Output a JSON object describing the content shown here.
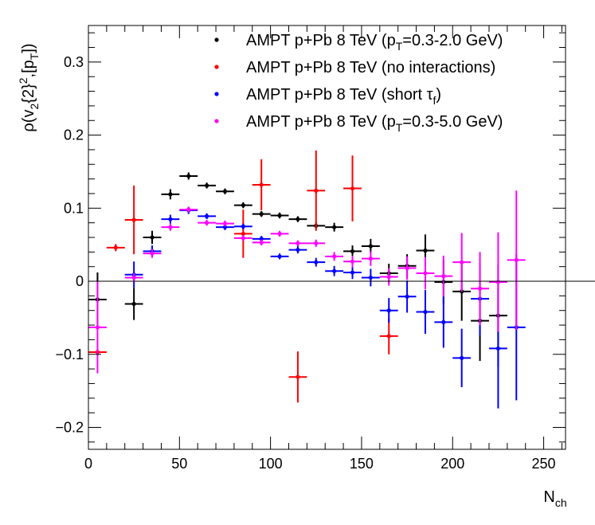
{
  "chart_data": {
    "type": "scatter",
    "title": "",
    "xlabel": "N_ch",
    "ylabel": "ρ(v_2{2}^2,[p_T])",
    "xlim": [
      0,
      262
    ],
    "ylim": [
      -0.23,
      0.35
    ],
    "x_ticks": [
      0,
      50,
      100,
      150,
      200,
      250
    ],
    "x_tick_labels": [
      "0",
      "50",
      "100",
      "150",
      "200",
      "250"
    ],
    "y_ticks": [
      -0.2,
      -0.1,
      0,
      0.1,
      0.2,
      0.3
    ],
    "y_tick_labels": [
      "−0.2",
      "−0.1",
      "0",
      "0.1",
      "0.2",
      "0.3"
    ],
    "zero_line": true,
    "grid": false,
    "legend_position": "top-right",
    "series": [
      {
        "name": "AMPT p+Pb 8 TeV (pT=0.3-2.0 GeV)",
        "legend_main": "AMPT p+Pb 8 TeV (p",
        "legend_sub": "T",
        "legend_tail": "=0.3-2.0 GeV)",
        "color": "#000000",
        "points": [
          {
            "x": 5,
            "y": -0.025,
            "err": 0.037
          },
          {
            "x": 25,
            "y": -0.031,
            "err": 0.022
          },
          {
            "x": 35,
            "y": 0.06,
            "err": 0.009
          },
          {
            "x": 45,
            "y": 0.119,
            "err": 0.007
          },
          {
            "x": 55,
            "y": 0.144,
            "err": 0.005
          },
          {
            "x": 65,
            "y": 0.131,
            "err": 0.004
          },
          {
            "x": 75,
            "y": 0.123,
            "err": 0.004
          },
          {
            "x": 85,
            "y": 0.104,
            "err": 0.004
          },
          {
            "x": 95,
            "y": 0.092,
            "err": 0.004
          },
          {
            "x": 105,
            "y": 0.09,
            "err": 0.004
          },
          {
            "x": 115,
            "y": 0.085,
            "err": 0.004
          },
          {
            "x": 125,
            "y": 0.076,
            "err": 0.005
          },
          {
            "x": 135,
            "y": 0.074,
            "err": 0.006
          },
          {
            "x": 145,
            "y": 0.041,
            "err": 0.008
          },
          {
            "x": 155,
            "y": 0.048,
            "err": 0.01
          },
          {
            "x": 165,
            "y": 0.011,
            "err": 0.013
          },
          {
            "x": 175,
            "y": 0.021,
            "err": 0.016
          },
          {
            "x": 185,
            "y": 0.042,
            "err": 0.022
          },
          {
            "x": 195,
            "y": -0.001,
            "err": 0.03
          },
          {
            "x": 205,
            "y": -0.014,
            "err": 0.04
          },
          {
            "x": 215,
            "y": -0.054,
            "err": 0.055
          },
          {
            "x": 225,
            "y": -0.047,
            "err": 0.07
          }
        ]
      },
      {
        "name": "AMPT p+Pb 8 TeV (no interactions)",
        "legend_main": "AMPT p+Pb 8 TeV (no interactions)",
        "legend_sub": "",
        "legend_tail": "",
        "color": "#ff0000",
        "points": [
          {
            "x": 5,
            "y": -0.097,
            "err": 0.005
          },
          {
            "x": 15,
            "y": 0.046,
            "err": 0.005
          },
          {
            "x": 25,
            "y": 0.084,
            "err": 0.047
          },
          {
            "x": 85,
            "y": 0.065,
            "err": 0.033
          },
          {
            "x": 95,
            "y": 0.132,
            "err": 0.035
          },
          {
            "x": 115,
            "y": -0.131,
            "err": 0.035
          },
          {
            "x": 125,
            "y": 0.124,
            "err": 0.055
          },
          {
            "x": 145,
            "y": 0.127,
            "err": 0.045
          },
          {
            "x": 165,
            "y": -0.075,
            "err": 0.025
          }
        ]
      },
      {
        "name": "AMPT p+Pb 8 TeV (short τf)",
        "legend_main": "AMPT p+Pb 8 TeV (short τ",
        "legend_sub": "f",
        "legend_tail": ")",
        "color": "#0000ff",
        "points": [
          {
            "x": 25,
            "y": 0.009,
            "err": 0.018
          },
          {
            "x": 35,
            "y": 0.041,
            "err": 0.008
          },
          {
            "x": 45,
            "y": 0.085,
            "err": 0.006
          },
          {
            "x": 55,
            "y": 0.097,
            "err": 0.005
          },
          {
            "x": 65,
            "y": 0.089,
            "err": 0.004
          },
          {
            "x": 75,
            "y": 0.074,
            "err": 0.004
          },
          {
            "x": 85,
            "y": 0.075,
            "err": 0.004
          },
          {
            "x": 95,
            "y": 0.058,
            "err": 0.004
          },
          {
            "x": 105,
            "y": 0.034,
            "err": 0.004
          },
          {
            "x": 115,
            "y": 0.043,
            "err": 0.005
          },
          {
            "x": 125,
            "y": 0.026,
            "err": 0.006
          },
          {
            "x": 135,
            "y": 0.014,
            "err": 0.007
          },
          {
            "x": 145,
            "y": 0.012,
            "err": 0.009
          },
          {
            "x": 155,
            "y": 0.005,
            "err": 0.012
          },
          {
            "x": 165,
            "y": -0.04,
            "err": 0.017
          },
          {
            "x": 175,
            "y": -0.021,
            "err": 0.022
          },
          {
            "x": 185,
            "y": -0.042,
            "err": 0.03
          },
          {
            "x": 195,
            "y": -0.056,
            "err": 0.035
          },
          {
            "x": 205,
            "y": -0.105,
            "err": 0.04
          },
          {
            "x": 215,
            "y": -0.024,
            "err": 0.05
          },
          {
            "x": 225,
            "y": -0.092,
            "err": 0.082
          },
          {
            "x": 235,
            "y": -0.063,
            "err": 0.1
          }
        ]
      },
      {
        "name": "AMPT p+Pb 8 TeV (pT=0.3-5.0 GeV)",
        "legend_main": "AMPT p+Pb 8 TeV (p",
        "legend_sub": "T",
        "legend_tail": "=0.3-5.0 GeV)",
        "color": "#ff00ff",
        "points": [
          {
            "x": 5,
            "y": -0.063,
            "err": 0.063
          },
          {
            "x": 25,
            "y": 0.005,
            "err": 0.006
          },
          {
            "x": 35,
            "y": 0.038,
            "err": 0.006
          },
          {
            "x": 45,
            "y": 0.074,
            "err": 0.005
          },
          {
            "x": 55,
            "y": 0.098,
            "err": 0.004
          },
          {
            "x": 65,
            "y": 0.08,
            "err": 0.004
          },
          {
            "x": 75,
            "y": 0.079,
            "err": 0.004
          },
          {
            "x": 85,
            "y": 0.059,
            "err": 0.004
          },
          {
            "x": 95,
            "y": 0.053,
            "err": 0.004
          },
          {
            "x": 105,
            "y": 0.065,
            "err": 0.004
          },
          {
            "x": 115,
            "y": 0.052,
            "err": 0.004
          },
          {
            "x": 125,
            "y": 0.052,
            "err": 0.005
          },
          {
            "x": 135,
            "y": 0.034,
            "err": 0.006
          },
          {
            "x": 145,
            "y": 0.027,
            "err": 0.008
          },
          {
            "x": 155,
            "y": 0.031,
            "err": 0.01
          },
          {
            "x": 165,
            "y": 0.006,
            "err": 0.012
          },
          {
            "x": 175,
            "y": 0.018,
            "err": 0.016
          },
          {
            "x": 185,
            "y": 0.011,
            "err": 0.022
          },
          {
            "x": 195,
            "y": 0.007,
            "err": 0.028
          },
          {
            "x": 205,
            "y": 0.026,
            "err": 0.04
          },
          {
            "x": 215,
            "y": -0.01,
            "err": 0.05
          },
          {
            "x": 225,
            "y": -0.001,
            "err": 0.068
          },
          {
            "x": 235,
            "y": 0.029,
            "err": 0.095
          }
        ]
      }
    ]
  }
}
